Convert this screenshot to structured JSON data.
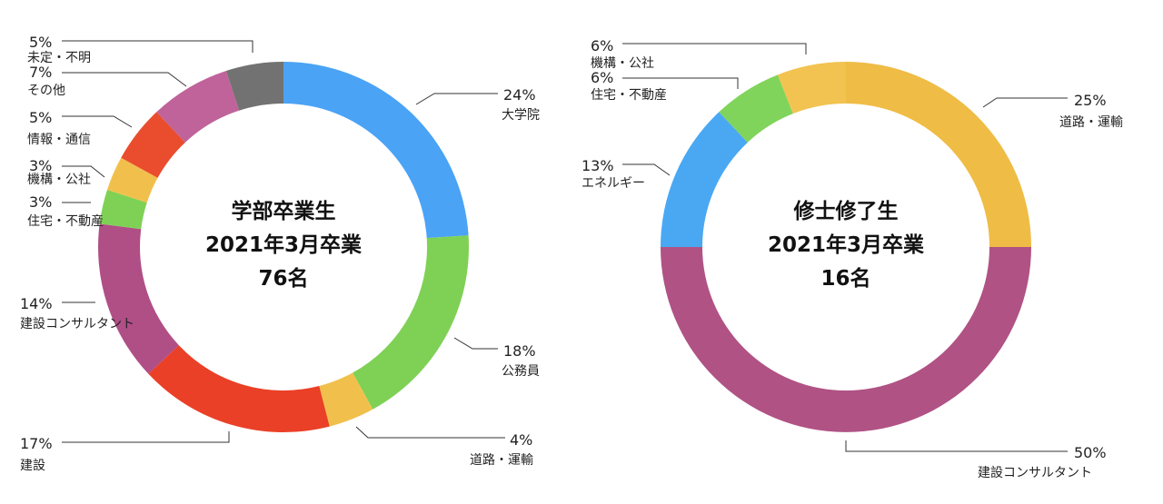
{
  "chart_data": [
    {
      "type": "pie",
      "center_text": [
        "学部卒業生",
        "2021年3月卒業",
        "76名"
      ],
      "slices": [
        {
          "label": "大学院",
          "value": 24,
          "pct_label": "24%",
          "color": "#4aa3f5"
        },
        {
          "label": "公務員",
          "value": 18,
          "pct_label": "18%",
          "color": "#7fd155"
        },
        {
          "label": "道路・運輸",
          "value": 4,
          "pct_label": "4%",
          "color": "#f1c04c"
        },
        {
          "label": "建設",
          "value": 17,
          "pct_label": "17%",
          "color": "#ea4027"
        },
        {
          "label": "建設コンサルタント",
          "value": 14,
          "pct_label": "14%",
          "color": "#b04e86"
        },
        {
          "label": "住宅・不動産",
          "value": 3,
          "pct_label": "3%",
          "color": "#7fd155"
        },
        {
          "label": "機構・公社",
          "value": 3,
          "pct_label": "3%",
          "color": "#f1c04c"
        },
        {
          "label": "情報・通信",
          "value": 5,
          "pct_label": "5%",
          "color": "#ea4d2e"
        },
        {
          "label": "その他",
          "value": 7,
          "pct_label": "7%",
          "color": "#c0639a"
        },
        {
          "label": "未定・不明",
          "value": 5,
          "pct_label": "5%",
          "color": "#727272"
        }
      ]
    },
    {
      "type": "pie",
      "center_text": [
        "修士修了生",
        "2021年3月卒業",
        "16名"
      ],
      "slices": [
        {
          "label": "道路・運輸",
          "value": 25,
          "pct_label": "25%",
          "color": "#efbc45"
        },
        {
          "label": "建設コンサルタント",
          "value": 50,
          "pct_label": "50%",
          "color": "#b05284"
        },
        {
          "label": "エネルギー",
          "value": 13,
          "pct_label": "13%",
          "color": "#4aa8f3"
        },
        {
          "label": "住宅・不動産",
          "value": 6,
          "pct_label": "6%",
          "color": "#80d45b"
        },
        {
          "label": "機構・公社",
          "value": 6,
          "pct_label": "6%",
          "color": "#f2c350"
        }
      ]
    }
  ]
}
